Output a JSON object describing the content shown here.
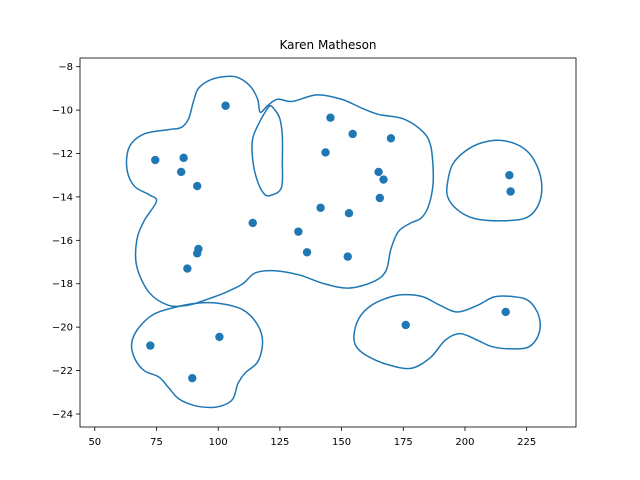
{
  "chart_data": {
    "type": "scatter",
    "title": "Karen Matheson",
    "xlabel": "",
    "ylabel": "",
    "xlim": [
      44,
      245
    ],
    "ylim": [
      -24.6,
      -7.6
    ],
    "xticks": [
      50,
      75,
      100,
      125,
      150,
      175,
      200,
      225
    ],
    "yticks": [
      -24,
      -22,
      -20,
      -18,
      -16,
      -14,
      -12,
      -10,
      -8
    ],
    "grid": false,
    "legend": "none",
    "colors": {
      "series": "#1f77b4"
    },
    "series": [
      {
        "points": [
          [
            103,
            -9.8
          ],
          [
            145.5,
            -10.35
          ],
          [
            154.5,
            -11.1
          ],
          [
            170,
            -11.3
          ],
          [
            74.5,
            -12.3
          ],
          [
            86,
            -12.2
          ],
          [
            143.5,
            -11.95
          ],
          [
            85,
            -12.85
          ],
          [
            165,
            -12.85
          ],
          [
            167,
            -13.2
          ],
          [
            91.5,
            -13.5
          ],
          [
            165.5,
            -14.05
          ],
          [
            141.5,
            -14.5
          ],
          [
            153,
            -14.75
          ],
          [
            114,
            -15.2
          ],
          [
            132.5,
            -15.6
          ],
          [
            92,
            -16.4
          ],
          [
            91.5,
            -16.6
          ],
          [
            136,
            -16.55
          ],
          [
            152.5,
            -16.75
          ],
          [
            87.5,
            -17.3
          ],
          [
            218,
            -13.0
          ],
          [
            218.5,
            -13.75
          ],
          [
            176,
            -19.9
          ],
          [
            216.5,
            -19.3
          ],
          [
            72.5,
            -20.85
          ],
          [
            100.5,
            -20.45
          ],
          [
            89.5,
            -22.35
          ]
        ]
      }
    ],
    "contours": [
      {
        "points": [
          [
            80,
            -10.9
          ],
          [
            85,
            -10.8
          ],
          [
            88,
            -10.4
          ],
          [
            90,
            -9.6
          ],
          [
            92,
            -9.0
          ],
          [
            97,
            -8.6
          ],
          [
            103,
            -8.45
          ],
          [
            108,
            -8.5
          ],
          [
            113,
            -8.9
          ],
          [
            116,
            -9.5
          ],
          [
            117,
            -10.1
          ],
          [
            120,
            -9.8
          ],
          [
            124,
            -9.5
          ],
          [
            130,
            -9.6
          ],
          [
            140,
            -9.3
          ],
          [
            150,
            -9.5
          ],
          [
            158,
            -9.9
          ],
          [
            165,
            -10.2
          ],
          [
            175,
            -10.4
          ],
          [
            183,
            -11.0
          ],
          [
            186,
            -11.6
          ],
          [
            187,
            -12.5
          ],
          [
            187,
            -13.5
          ],
          [
            185,
            -14.5
          ],
          [
            182,
            -15.0
          ],
          [
            178,
            -15.2
          ],
          [
            173,
            -15.6
          ],
          [
            170,
            -16.4
          ],
          [
            168,
            -17.4
          ],
          [
            163,
            -17.9
          ],
          [
            153,
            -18.2
          ],
          [
            143,
            -18.0
          ],
          [
            133,
            -17.6
          ],
          [
            123,
            -17.4
          ],
          [
            115,
            -17.5
          ],
          [
            110,
            -18.0
          ],
          [
            103,
            -18.4
          ],
          [
            96,
            -18.7
          ],
          [
            91,
            -18.9
          ],
          [
            87,
            -19.0
          ],
          [
            80,
            -19.0
          ],
          [
            72,
            -18.4
          ],
          [
            67,
            -17.2
          ],
          [
            67,
            -16.0
          ],
          [
            70,
            -15.1
          ],
          [
            75,
            -14.2
          ],
          [
            72,
            -13.9
          ],
          [
            66,
            -13.5
          ],
          [
            63,
            -12.7
          ],
          [
            64,
            -11.7
          ],
          [
            70,
            -11.1
          ]
        ]
      },
      {
        "points": [
          [
            117,
            -10.5
          ],
          [
            119,
            -10.1
          ],
          [
            121,
            -9.8
          ],
          [
            123,
            -10.0
          ],
          [
            125,
            -10.4
          ],
          [
            126,
            -11.2
          ],
          [
            126,
            -12.4
          ],
          [
            126,
            -13.3
          ],
          [
            125,
            -13.7
          ],
          [
            122,
            -13.9
          ],
          [
            119,
            -13.9
          ],
          [
            116,
            -13.3
          ],
          [
            114,
            -12.3
          ],
          [
            114,
            -11.3
          ]
        ]
      },
      {
        "points": [
          [
            193,
            -13.3
          ],
          [
            195,
            -12.5
          ],
          [
            200,
            -11.9
          ],
          [
            207,
            -11.5
          ],
          [
            215,
            -11.4
          ],
          [
            223,
            -11.7
          ],
          [
            228,
            -12.3
          ],
          [
            231,
            -13.3
          ],
          [
            230,
            -14.3
          ],
          [
            225,
            -14.95
          ],
          [
            215,
            -15.1
          ],
          [
            204,
            -15.0
          ],
          [
            197,
            -14.6
          ],
          [
            193,
            -14.0
          ]
        ]
      },
      {
        "points": [
          [
            100,
            -18.9
          ],
          [
            110,
            -19.2
          ],
          [
            116,
            -19.9
          ],
          [
            118,
            -20.7
          ],
          [
            116,
            -21.6
          ],
          [
            111,
            -22.1
          ],
          [
            108,
            -22.6
          ],
          [
            106,
            -23.3
          ],
          [
            102,
            -23.6
          ],
          [
            97,
            -23.7
          ],
          [
            90,
            -23.6
          ],
          [
            84,
            -23.3
          ],
          [
            80,
            -22.8
          ],
          [
            76,
            -22.3
          ],
          [
            70,
            -22.0
          ],
          [
            66,
            -21.4
          ],
          [
            65,
            -20.7
          ],
          [
            68,
            -20.0
          ],
          [
            74,
            -19.4
          ],
          [
            82,
            -19.1
          ],
          [
            91,
            -18.9
          ]
        ]
      },
      {
        "points": [
          [
            155,
            -20.4
          ],
          [
            157,
            -19.6
          ],
          [
            162,
            -19.0
          ],
          [
            170,
            -18.6
          ],
          [
            176,
            -18.5
          ],
          [
            183,
            -18.6
          ],
          [
            190,
            -19.0
          ],
          [
            197,
            -19.3
          ],
          [
            205,
            -19.0
          ],
          [
            212,
            -18.6
          ],
          [
            220,
            -18.6
          ],
          [
            226,
            -18.8
          ],
          [
            230,
            -19.5
          ],
          [
            230,
            -20.3
          ],
          [
            226,
            -20.9
          ],
          [
            219,
            -21.0
          ],
          [
            211,
            -20.9
          ],
          [
            205,
            -20.6
          ],
          [
            198,
            -20.3
          ],
          [
            192,
            -20.6
          ],
          [
            186,
            -21.4
          ],
          [
            178,
            -21.9
          ],
          [
            168,
            -21.7
          ],
          [
            160,
            -21.3
          ],
          [
            156,
            -20.9
          ]
        ]
      }
    ]
  }
}
